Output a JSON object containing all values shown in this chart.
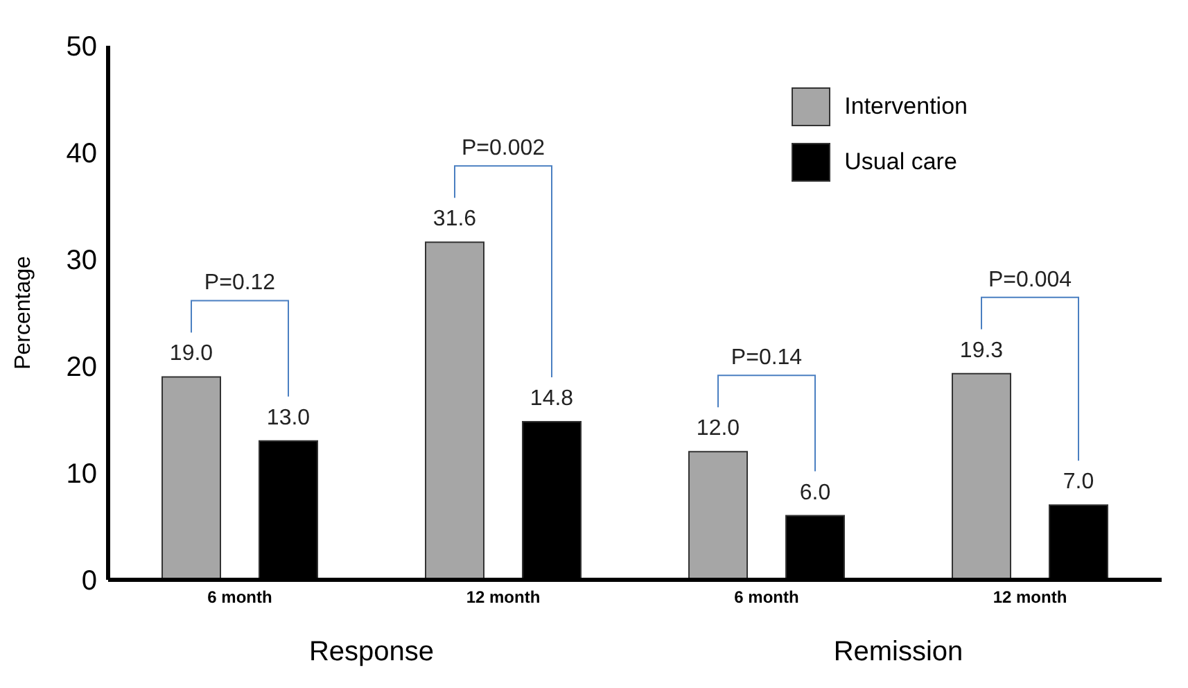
{
  "chart_data": {
    "type": "bar",
    "ylabel": "Percentage",
    "categories": [
      "6 month",
      "12 month",
      "6 month",
      "12 month"
    ],
    "series": [
      {
        "name": "Intervention",
        "color": "#a6a6a6",
        "values": [
          19.0,
          31.6,
          12.0,
          19.3
        ],
        "value_labels": [
          "19.0",
          "31.6",
          "12.0",
          "19.3"
        ]
      },
      {
        "name": "Usual care",
        "color": "#000000",
        "values": [
          13.0,
          14.8,
          6.0,
          7.0
        ],
        "value_labels": [
          "13.0",
          "14.8",
          "6.0",
          "7.0"
        ]
      }
    ],
    "ylim": [
      0,
      50
    ],
    "yticks": [
      0,
      10,
      20,
      30,
      40,
      50
    ],
    "grid": false,
    "legend": "top right",
    "annotations": [
      "P=0.12",
      "P=0.002",
      "P=0.14",
      "P=0.004",
      "Response",
      "Remission"
    ]
  }
}
